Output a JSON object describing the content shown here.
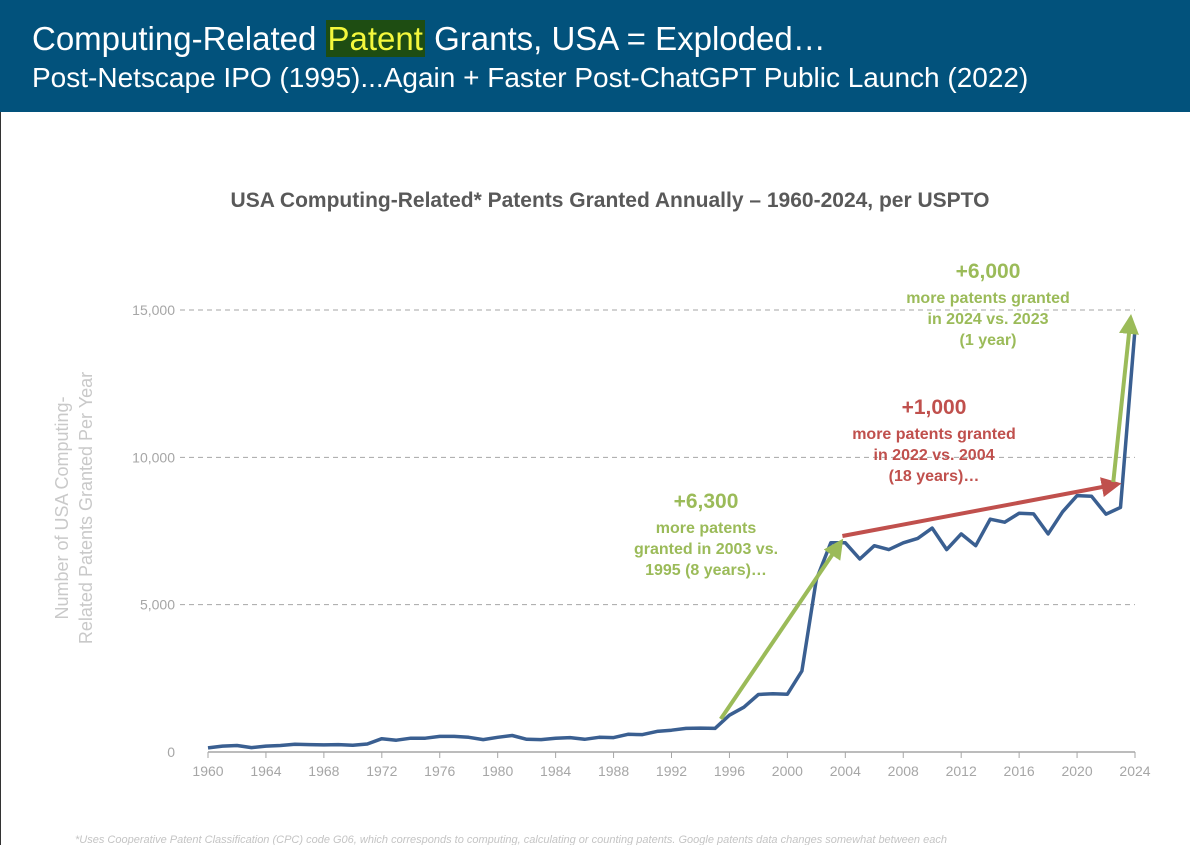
{
  "header": {
    "title_before": "Computing-Related ",
    "title_highlight": "Patent",
    "title_after": " Grants, USA = Exploded…",
    "subtitle": "Post-Netscape IPO (1995)...Again + Faster Post-ChatGPT Public Launch (2022)"
  },
  "colors": {
    "header_bg": "#02527c",
    "highlight_bg": "#1e4d12",
    "highlight_text": "#f4f83c",
    "line": "#3a5f91",
    "green": "#9bbb59",
    "red": "#c0504d"
  },
  "chart_data": {
    "type": "line",
    "title": "USA Computing-Related* Patents Granted Annually – 1960-2024, per USPTO",
    "ylabel_lines": [
      "Number of USA Computing-",
      "Related Patents Granted Per Year"
    ],
    "xlabel": "",
    "xlim": [
      1960,
      2024
    ],
    "ylim": [
      0,
      15000
    ],
    "xticks": [
      1960,
      1964,
      1968,
      1972,
      1976,
      1980,
      1984,
      1988,
      1992,
      1996,
      2000,
      2004,
      2008,
      2012,
      2016,
      2020,
      2024
    ],
    "yticks": [
      0,
      5000,
      10000,
      15000
    ],
    "ytick_labels": [
      "0",
      "5,000",
      "10,000",
      "15,000"
    ],
    "grid": "horizontal dashed",
    "x": [
      1960,
      1961,
      1962,
      1963,
      1964,
      1965,
      1966,
      1967,
      1968,
      1969,
      1970,
      1971,
      1972,
      1973,
      1974,
      1975,
      1976,
      1977,
      1978,
      1979,
      1980,
      1981,
      1982,
      1983,
      1984,
      1985,
      1986,
      1987,
      1988,
      1989,
      1990,
      1991,
      1992,
      1993,
      1994,
      1995,
      1996,
      1997,
      1998,
      1999,
      2000,
      2001,
      2002,
      2003,
      2004,
      2005,
      2006,
      2007,
      2008,
      2009,
      2010,
      2011,
      2012,
      2013,
      2014,
      2015,
      2016,
      2017,
      2018,
      2019,
      2020,
      2021,
      2022,
      2023,
      2024
    ],
    "y": [
      140,
      200,
      220,
      150,
      200,
      220,
      260,
      250,
      240,
      250,
      230,
      270,
      450,
      400,
      470,
      470,
      530,
      530,
      500,
      420,
      500,
      560,
      430,
      420,
      470,
      490,
      430,
      500,
      490,
      600,
      590,
      700,
      740,
      800,
      810,
      800,
      1250,
      1520,
      1950,
      1980,
      1960,
      2750,
      5850,
      7100,
      7100,
      6550,
      7000,
      6870,
      7100,
      7250,
      7600,
      6870,
      7400,
      7000,
      7900,
      7800,
      8100,
      8080,
      7400,
      8150,
      8700,
      8680,
      8070,
      8300,
      14350
    ],
    "annotations": [
      {
        "color": "green",
        "headline": "+6,300",
        "lines": [
          "more patents",
          "granted in 2003 vs.",
          "1995 (8 years)…"
        ],
        "arrow_from": [
          1995.4,
          1120
        ],
        "arrow_to": [
          2003.7,
          7130
        ]
      },
      {
        "color": "red",
        "headline": "+1,000",
        "lines": [
          "more patents granted",
          "in 2022 vs. 2004",
          "(18 years)…"
        ],
        "arrow_from": [
          2003.8,
          7330
        ],
        "arrow_to": [
          2022.8,
          9090
        ]
      },
      {
        "color": "green",
        "headline": "+6,000",
        "lines": [
          "more patents granted",
          "in 2024 vs. 2023",
          "(1 year)"
        ],
        "arrow_from": [
          2022.5,
          9160
        ],
        "arrow_to": [
          2023.7,
          14730
        ]
      }
    ],
    "footnote": "*Uses Cooperative Patent Classification (CPC) code G06, which corresponds to computing, calculating or counting patents. Google patents data changes somewhat between each"
  }
}
